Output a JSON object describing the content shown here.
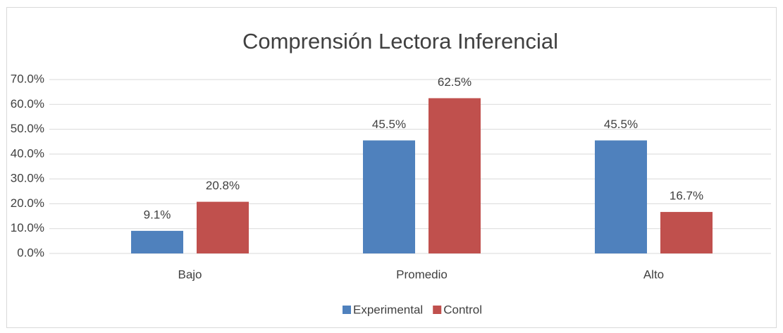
{
  "chart_data": {
    "type": "bar",
    "title": "Comprensión Lectora Inferencial",
    "categories": [
      "Bajo",
      "Promedio",
      "Alto"
    ],
    "series": [
      {
        "name": "Experimental",
        "color": "#4f81bd",
        "values": [
          9.1,
          45.5,
          45.5
        ],
        "value_labels": [
          "9.1%",
          "45.5%",
          "45.5%"
        ]
      },
      {
        "name": "Control",
        "color": "#c0504d",
        "values": [
          20.8,
          62.5,
          16.7
        ],
        "value_labels": [
          "20.8%",
          "62.5%",
          "16.7%"
        ]
      }
    ],
    "ylim": [
      0,
      70
    ],
    "yticks": [
      {
        "value": 0,
        "label": "0.0%"
      },
      {
        "value": 10,
        "label": "10.0%"
      },
      {
        "value": 20,
        "label": "20.0%"
      },
      {
        "value": 30,
        "label": "30.0%"
      },
      {
        "value": 40,
        "label": "40.0%"
      },
      {
        "value": 50,
        "label": "50.0%"
      },
      {
        "value": 60,
        "label": "60.0%"
      },
      {
        "value": 70,
        "label": "70.0%"
      }
    ],
    "grid": true,
    "legend": "bottom"
  }
}
